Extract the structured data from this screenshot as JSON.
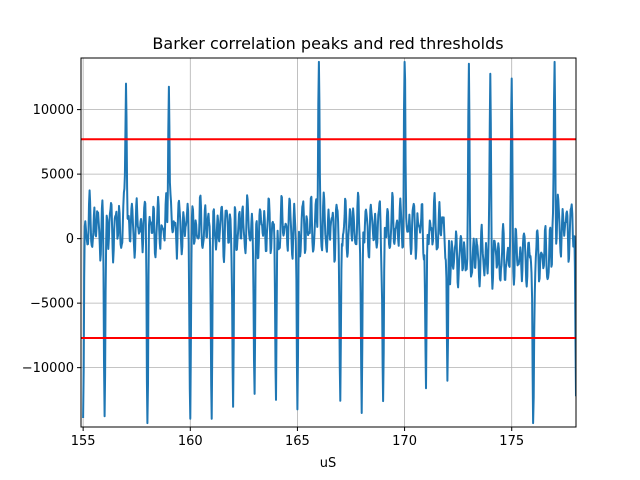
{
  "chart_data": {
    "type": "line",
    "title": "Barker correlation peaks and red thresholds",
    "xlabel": "uS",
    "ylabel": "",
    "xlim": [
      154.9,
      178.0
    ],
    "ylim": [
      -14600,
      14000
    ],
    "xticks": [
      155,
      160,
      165,
      170,
      175
    ],
    "yticks": [
      -10000,
      -5000,
      0,
      5000,
      10000
    ],
    "xtick_labels": [
      "155",
      "160",
      "165",
      "170",
      "175"
    ],
    "ytick_labels": [
      "−10000",
      "−5000",
      "0",
      "5000",
      "10000"
    ],
    "grid": true,
    "thresholds": [
      7700,
      -7700
    ],
    "colors": {
      "series": "#1f77b4",
      "threshold": "#ff0000",
      "grid": "#b0b0b0"
    },
    "peaks": [
      {
        "x": 155.0,
        "y": -13000
      },
      {
        "x": 156.0,
        "y": -13500
      },
      {
        "x": 157.0,
        "y": 13500
      },
      {
        "x": 158.0,
        "y": -13400
      },
      {
        "x": 159.0,
        "y": 13500
      },
      {
        "x": 160.0,
        "y": -12900
      },
      {
        "x": 161.0,
        "y": -13000
      },
      {
        "x": 162.0,
        "y": -13000
      },
      {
        "x": 163.0,
        "y": -13000
      },
      {
        "x": 164.0,
        "y": -13100
      },
      {
        "x": 165.0,
        "y": -13700
      },
      {
        "x": 166.0,
        "y": 13600
      },
      {
        "x": 167.0,
        "y": -12900
      },
      {
        "x": 168.0,
        "y": -13000
      },
      {
        "x": 169.0,
        "y": -13500
      },
      {
        "x": 170.0,
        "y": 13400
      },
      {
        "x": 171.0,
        "y": -12900
      },
      {
        "x": 172.0,
        "y": -13500
      },
      {
        "x": 173.0,
        "y": 13000
      },
      {
        "x": 174.0,
        "y": 13000
      },
      {
        "x": 175.0,
        "y": 13500
      },
      {
        "x": 176.0,
        "y": -13300
      },
      {
        "x": 177.0,
        "y": 13400
      },
      {
        "x": 178.0,
        "y": -12000
      }
    ]
  }
}
